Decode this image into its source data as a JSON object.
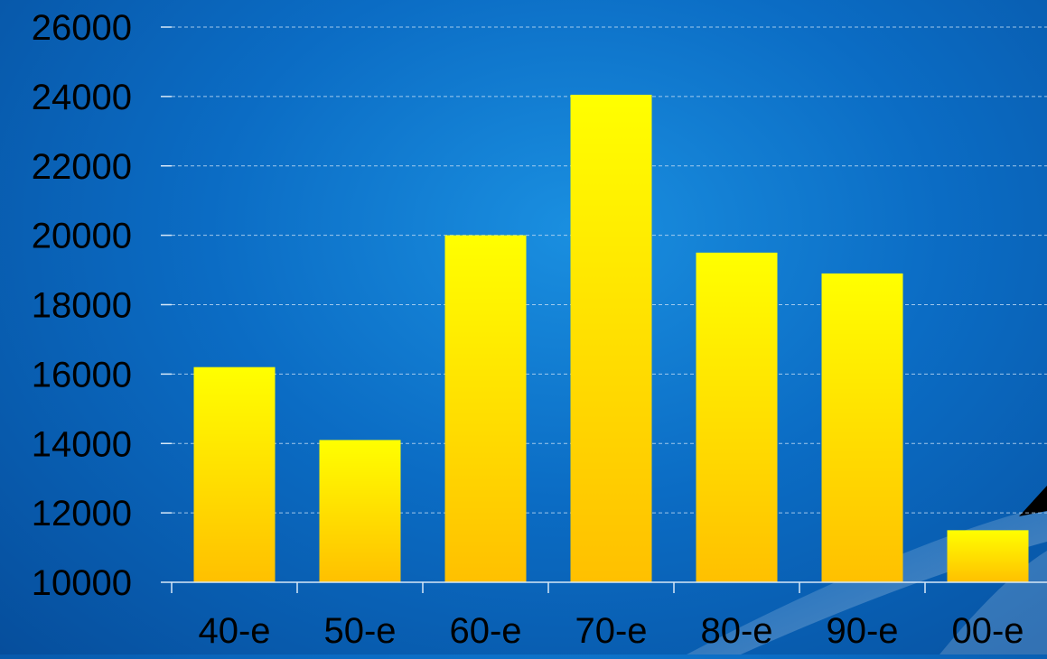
{
  "chart_data": {
    "type": "bar",
    "categories": [
      "40-e",
      "50-e",
      "60-e",
      "70-e",
      "80-e",
      "90-e",
      "00-e"
    ],
    "values": [
      16200,
      14100,
      20000,
      24050,
      19500,
      18900,
      11500
    ],
    "y_ticks": [
      "10000",
      "12000",
      "14000",
      "16000",
      "18000",
      "20000",
      "22000",
      "24000",
      "26000"
    ],
    "ylim": [
      10000,
      26000
    ],
    "grid": true,
    "title": "",
    "xlabel": "",
    "ylabel": ""
  },
  "colors": {
    "background": "#0b6cc4",
    "bar_top": "#ffff00",
    "bar_bottom": "#ffc000",
    "gridline": "#bcd8f2",
    "axis": "#d7e8f8",
    "label_text": "#000000"
  }
}
